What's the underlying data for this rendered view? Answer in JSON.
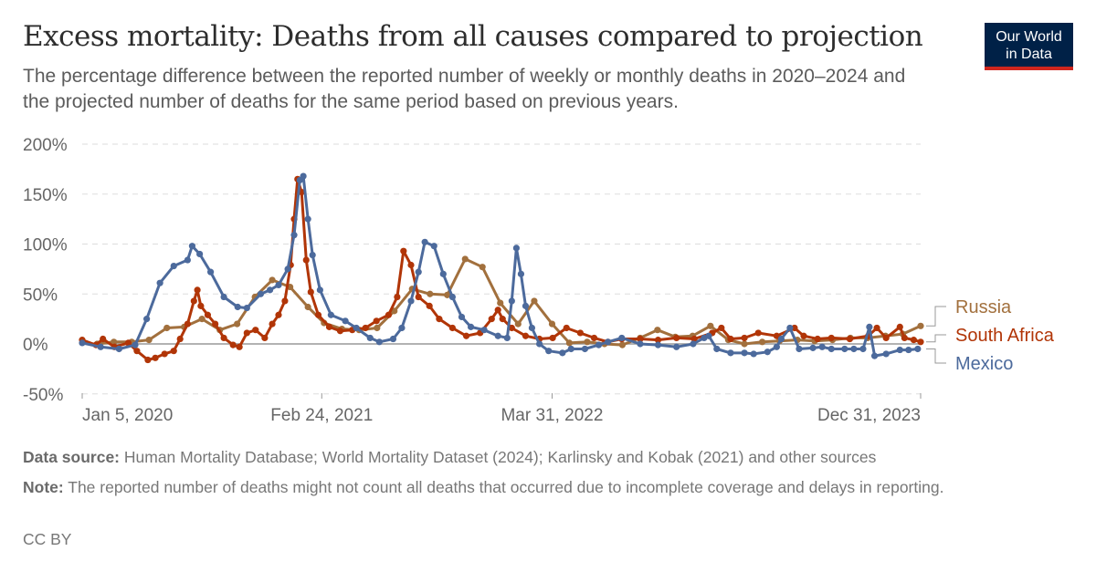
{
  "header": {
    "title": "Excess mortality: Deaths from all causes compared to projection",
    "subtitle": "The percentage difference between the reported number of weekly or monthly deaths in 2020–2024 and the projected number of deaths for the same period based on previous years.",
    "logo_line1": "Our World",
    "logo_line2": "in Data"
  },
  "footer": {
    "source_label": "Data source:",
    "source_text": " Human Mortality Database; World Mortality Dataset (2024); Karlinsky and Kobak (2021) and other sources",
    "note_label": "Note:",
    "note_text": " The reported number of deaths might not count all deaths that occurred due to incomplete coverage and delays in reporting.",
    "license": "CC BY"
  },
  "chart_data": {
    "type": "line",
    "title": "Excess mortality: Deaths from all causes compared to projection",
    "ylabel": "",
    "xlabel": "",
    "ylim": [
      -50,
      200
    ],
    "xlim": [
      "2020-01-05",
      "2023-12-31"
    ],
    "y_ticks": [
      "-50%",
      "0%",
      "50%",
      "100%",
      "150%",
      "200%"
    ],
    "y_tick_values": [
      -50,
      0,
      50,
      100,
      150,
      200
    ],
    "x_ticks": [
      "Jan 5, 2020",
      "Feb 24, 2021",
      "Mar 31, 2022",
      "Dec 31, 2023"
    ],
    "x_tick_values": [
      "2020-01-05",
      "2021-02-24",
      "2022-03-31",
      "2023-12-31"
    ],
    "grid": true,
    "legend": "right, inline labels",
    "series": [
      {
        "name": "Russia",
        "color": "#a2703d",
        "points": [
          [
            "2020-01-31",
            0
          ],
          [
            "2020-02-29",
            2
          ],
          [
            "2020-03-31",
            2
          ],
          [
            "2020-04-30",
            4
          ],
          [
            "2020-05-31",
            16
          ],
          [
            "2020-06-30",
            17
          ],
          [
            "2020-07-31",
            25
          ],
          [
            "2020-08-31",
            14
          ],
          [
            "2020-09-30",
            20
          ],
          [
            "2020-10-31",
            47
          ],
          [
            "2020-11-30",
            64
          ],
          [
            "2020-12-31",
            57
          ],
          [
            "2021-01-31",
            37
          ],
          [
            "2021-02-28",
            21
          ],
          [
            "2021-03-31",
            15
          ],
          [
            "2021-04-30",
            14
          ],
          [
            "2021-05-31",
            16
          ],
          [
            "2021-06-30",
            33
          ],
          [
            "2021-07-31",
            55
          ],
          [
            "2021-08-31",
            50
          ],
          [
            "2021-09-30",
            49
          ],
          [
            "2021-10-31",
            85
          ],
          [
            "2021-11-30",
            77
          ],
          [
            "2021-12-31",
            41
          ],
          [
            "2022-01-31",
            20
          ],
          [
            "2022-02-28",
            43
          ],
          [
            "2022-03-31",
            20
          ],
          [
            "2022-04-30",
            1
          ],
          [
            "2022-05-31",
            2
          ],
          [
            "2022-06-30",
            0
          ],
          [
            "2022-07-31",
            -1
          ],
          [
            "2022-08-31",
            6
          ],
          [
            "2022-09-30",
            14
          ],
          [
            "2022-10-31",
            7
          ],
          [
            "2022-11-30",
            8
          ],
          [
            "2022-12-31",
            18
          ],
          [
            "2023-01-31",
            4
          ],
          [
            "2023-02-28",
            0
          ],
          [
            "2023-03-31",
            2
          ],
          [
            "2023-04-30",
            3
          ],
          [
            "2023-05-31",
            4
          ],
          [
            "2023-06-30",
            3
          ],
          [
            "2023-07-31",
            4
          ],
          [
            "2023-08-31",
            6
          ],
          [
            "2023-09-30",
            6
          ],
          [
            "2023-10-31",
            8
          ],
          [
            "2023-11-30",
            10
          ],
          [
            "2023-12-31",
            18
          ]
        ]
      },
      {
        "name": "South Africa",
        "color": "#b13507",
        "points": [
          [
            "2020-01-05",
            4
          ],
          [
            "2020-01-29",
            -1
          ],
          [
            "2020-02-10",
            5
          ],
          [
            "2020-03-01",
            -3
          ],
          [
            "2020-03-25",
            1
          ],
          [
            "2020-04-09",
            -7
          ],
          [
            "2020-04-28",
            -16
          ],
          [
            "2020-05-11",
            -14
          ],
          [
            "2020-05-27",
            -10
          ],
          [
            "2020-06-12",
            -7
          ],
          [
            "2020-06-23",
            5
          ],
          [
            "2020-07-06",
            20
          ],
          [
            "2020-07-17",
            43
          ],
          [
            "2020-07-23",
            54
          ],
          [
            "2020-07-29",
            38
          ],
          [
            "2020-08-10",
            29
          ],
          [
            "2020-08-23",
            20
          ],
          [
            "2020-09-07",
            6
          ],
          [
            "2020-09-23",
            -1
          ],
          [
            "2020-10-04",
            -3
          ],
          [
            "2020-10-17",
            11
          ],
          [
            "2020-11-01",
            14
          ],
          [
            "2020-11-17",
            6
          ],
          [
            "2020-11-30",
            20
          ],
          [
            "2020-12-11",
            29
          ],
          [
            "2020-12-22",
            43
          ],
          [
            "2021-01-01",
            79
          ],
          [
            "2021-01-07",
            125
          ],
          [
            "2021-01-13",
            165
          ],
          [
            "2021-01-20",
            152
          ],
          [
            "2021-01-28",
            84
          ],
          [
            "2021-02-05",
            52
          ],
          [
            "2021-02-18",
            29
          ],
          [
            "2021-03-09",
            17
          ],
          [
            "2021-03-28",
            13
          ],
          [
            "2021-04-18",
            14
          ],
          [
            "2021-05-11",
            16
          ],
          [
            "2021-05-30",
            23
          ],
          [
            "2021-06-20",
            29
          ],
          [
            "2021-07-05",
            47
          ],
          [
            "2021-07-16",
            93
          ],
          [
            "2021-07-29",
            79
          ],
          [
            "2021-08-11",
            47
          ],
          [
            "2021-08-30",
            38
          ],
          [
            "2021-09-16",
            25
          ],
          [
            "2021-10-09",
            16
          ],
          [
            "2021-11-02",
            8
          ],
          [
            "2021-11-26",
            11
          ],
          [
            "2021-12-16",
            25
          ],
          [
            "2021-12-27",
            34
          ],
          [
            "2022-01-04",
            25
          ],
          [
            "2022-01-20",
            16
          ],
          [
            "2022-02-13",
            8
          ],
          [
            "2022-03-09",
            5
          ],
          [
            "2022-04-01",
            6
          ],
          [
            "2022-04-25",
            16
          ],
          [
            "2022-05-19",
            11
          ],
          [
            "2022-06-12",
            6
          ],
          [
            "2022-07-06",
            2
          ],
          [
            "2022-07-30",
            5
          ],
          [
            "2022-08-31",
            5
          ],
          [
            "2022-10-01",
            4
          ],
          [
            "2022-11-02",
            6
          ],
          [
            "2022-12-03",
            5
          ],
          [
            "2023-01-03",
            11
          ],
          [
            "2023-01-19",
            16
          ],
          [
            "2023-02-04",
            5
          ],
          [
            "2023-02-28",
            6
          ],
          [
            "2023-03-24",
            11
          ],
          [
            "2023-04-25",
            8
          ],
          [
            "2023-05-26",
            16
          ],
          [
            "2023-06-11",
            8
          ],
          [
            "2023-07-05",
            5
          ],
          [
            "2023-07-29",
            6
          ],
          [
            "2023-08-30",
            5
          ],
          [
            "2023-10-01",
            8
          ],
          [
            "2023-10-16",
            16
          ],
          [
            "2023-11-01",
            6
          ],
          [
            "2023-11-25",
            17
          ],
          [
            "2023-12-03",
            6
          ],
          [
            "2023-12-19",
            4
          ],
          [
            "2023-12-31",
            2
          ]
        ]
      },
      {
        "name": "Mexico",
        "color": "#4c6a9c",
        "points": [
          [
            "2020-01-05",
            1
          ],
          [
            "2020-02-06",
            -3
          ],
          [
            "2020-03-09",
            -5
          ],
          [
            "2020-04-06",
            -1
          ],
          [
            "2020-04-26",
            25
          ],
          [
            "2020-05-19",
            61
          ],
          [
            "2020-06-12",
            78
          ],
          [
            "2020-07-06",
            84
          ],
          [
            "2020-07-14",
            98
          ],
          [
            "2020-07-27",
            90
          ],
          [
            "2020-08-15",
            72
          ],
          [
            "2020-09-07",
            47
          ],
          [
            "2020-10-01",
            37
          ],
          [
            "2020-10-17",
            36
          ],
          [
            "2020-11-10",
            50
          ],
          [
            "2020-11-26",
            54
          ],
          [
            "2020-12-11",
            59
          ],
          [
            "2020-12-27",
            75
          ],
          [
            "2021-01-07",
            109
          ],
          [
            "2021-01-17",
            164
          ],
          [
            "2021-01-23",
            168
          ],
          [
            "2021-01-31",
            125
          ],
          [
            "2021-02-08",
            89
          ],
          [
            "2021-02-21",
            54
          ],
          [
            "2021-03-12",
            29
          ],
          [
            "2021-04-06",
            23
          ],
          [
            "2021-04-25",
            16
          ],
          [
            "2021-05-19",
            6
          ],
          [
            "2021-06-04",
            2
          ],
          [
            "2021-06-28",
            5
          ],
          [
            "2021-07-13",
            16
          ],
          [
            "2021-07-29",
            43
          ],
          [
            "2021-08-11",
            72
          ],
          [
            "2021-08-22",
            102
          ],
          [
            "2021-09-07",
            98
          ],
          [
            "2021-09-23",
            70
          ],
          [
            "2021-10-09",
            47
          ],
          [
            "2021-10-25",
            27
          ],
          [
            "2021-11-10",
            17
          ],
          [
            "2021-12-03",
            14
          ],
          [
            "2021-12-27",
            8
          ],
          [
            "2022-01-12",
            6
          ],
          [
            "2022-01-20",
            43
          ],
          [
            "2022-01-28",
            96
          ],
          [
            "2022-02-05",
            70
          ],
          [
            "2022-02-13",
            38
          ],
          [
            "2022-02-24",
            16
          ],
          [
            "2022-03-09",
            0
          ],
          [
            "2022-03-25",
            -7
          ],
          [
            "2022-04-18",
            -9
          ],
          [
            "2022-05-03",
            -5
          ],
          [
            "2022-05-27",
            -5
          ],
          [
            "2022-06-20",
            -1
          ],
          [
            "2022-07-06",
            2
          ],
          [
            "2022-07-30",
            6
          ],
          [
            "2022-08-31",
            0
          ],
          [
            "2022-10-01",
            -1
          ],
          [
            "2022-11-02",
            -3
          ],
          [
            "2022-12-01",
            0
          ],
          [
            "2022-12-20",
            6
          ],
          [
            "2022-12-28",
            8
          ],
          [
            "2023-01-11",
            -5
          ],
          [
            "2023-02-04",
            -9
          ],
          [
            "2023-02-28",
            -9
          ],
          [
            "2023-03-16",
            -10
          ],
          [
            "2023-04-09",
            -8
          ],
          [
            "2023-04-25",
            -3
          ],
          [
            "2023-05-03",
            5
          ],
          [
            "2023-05-18",
            16
          ],
          [
            "2023-06-03",
            -5
          ],
          [
            "2023-06-27",
            -4
          ],
          [
            "2023-07-13",
            -3
          ],
          [
            "2023-07-29",
            -5
          ],
          [
            "2023-08-21",
            -5
          ],
          [
            "2023-09-06",
            -5
          ],
          [
            "2023-09-22",
            -5
          ],
          [
            "2023-10-03",
            17
          ],
          [
            "2023-10-12",
            -12
          ],
          [
            "2023-11-01",
            -10
          ],
          [
            "2023-11-25",
            -6
          ],
          [
            "2023-12-10",
            -6
          ],
          [
            "2023-12-26",
            -5
          ]
        ]
      }
    ]
  }
}
